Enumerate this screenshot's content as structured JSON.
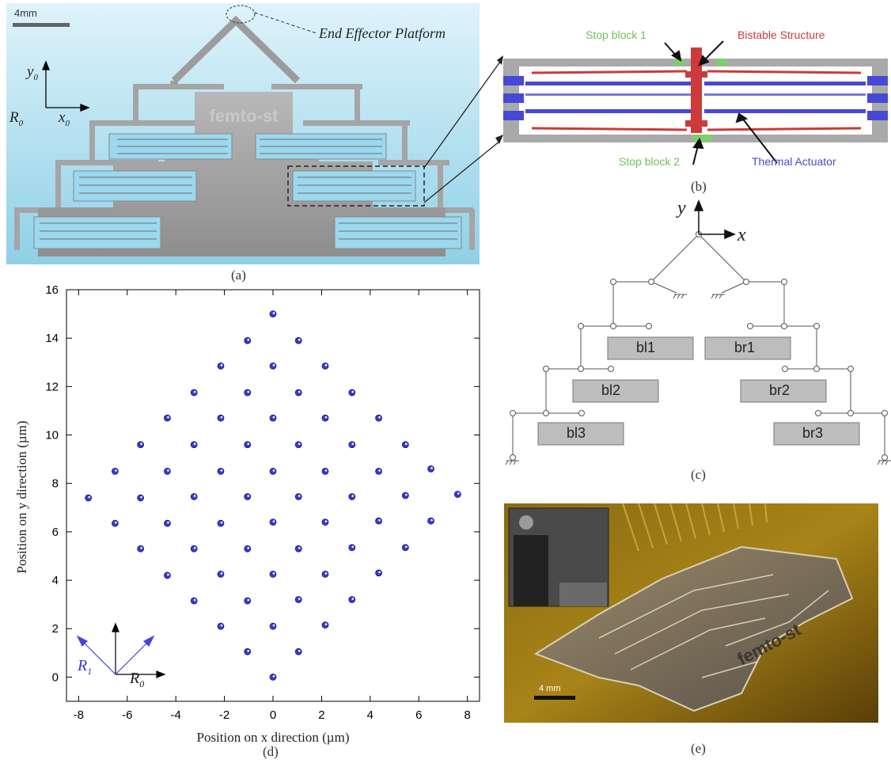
{
  "panel_a": {
    "caption": "(a)",
    "scale_label": "4mm",
    "end_effector_label": "End Effector Platform",
    "axis_y": "y",
    "axis_y_sub": "0",
    "axis_x": "x",
    "axis_x_sub": "0",
    "frame": "R",
    "frame_sub": "0",
    "logo_text": "femto-st"
  },
  "panel_b": {
    "caption": "(b)",
    "stop_block_1": "Stop block 1",
    "stop_block_2": "Stop block 2",
    "bistable": "Bistable Structure",
    "thermal": "Thermal Actuator",
    "colors": {
      "stop": "#7ecf6a",
      "bistable": "#d13b3b",
      "thermal": "#4040d0",
      "frame": "#9a9a9a"
    }
  },
  "panel_c": {
    "caption": "(c)",
    "axis_x": "x",
    "axis_y": "y",
    "blocks": [
      "bl1",
      "br1",
      "bl2",
      "br2",
      "bl3",
      "br3"
    ]
  },
  "panel_d": {
    "caption": "(d)",
    "frame_r1": "R",
    "frame_r1_sub": "1",
    "frame_r0": "R",
    "frame_r0_sub": "0"
  },
  "panel_e": {
    "caption": "(e)",
    "scale_label": "4 mm",
    "logo_text": "femto-st"
  },
  "chart_data": {
    "type": "scatter",
    "xlabel": "Position on x direction (µm)",
    "ylabel": "Position on y direction (µm)",
    "xlim": [
      -8.5,
      8.5
    ],
    "ylim": [
      -1,
      16
    ],
    "xticks": [
      -8,
      -6,
      -4,
      -2,
      0,
      2,
      4,
      6,
      8
    ],
    "yticks": [
      0,
      2,
      4,
      6,
      8,
      10,
      12,
      14,
      16
    ],
    "grid": false,
    "color": "#3a3ad0",
    "points": [
      [
        0,
        15.0
      ],
      [
        -1.05,
        13.9
      ],
      [
        1.05,
        13.9
      ],
      [
        -2.15,
        12.85
      ],
      [
        0,
        12.85
      ],
      [
        2.15,
        12.85
      ],
      [
        -3.25,
        11.75
      ],
      [
        -1.05,
        11.75
      ],
      [
        1.05,
        11.75
      ],
      [
        3.25,
        11.75
      ],
      [
        -4.35,
        10.7
      ],
      [
        -2.15,
        10.7
      ],
      [
        0,
        10.7
      ],
      [
        2.15,
        10.7
      ],
      [
        4.35,
        10.7
      ],
      [
        -5.45,
        9.6
      ],
      [
        -3.25,
        9.6
      ],
      [
        -1.05,
        9.6
      ],
      [
        1.05,
        9.6
      ],
      [
        3.25,
        9.6
      ],
      [
        5.45,
        9.6
      ],
      [
        -6.5,
        8.5
      ],
      [
        -4.35,
        8.5
      ],
      [
        -2.15,
        8.5
      ],
      [
        0,
        8.5
      ],
      [
        2.15,
        8.5
      ],
      [
        4.35,
        8.5
      ],
      [
        6.5,
        8.6
      ],
      [
        -7.6,
        7.4
      ],
      [
        -5.45,
        7.4
      ],
      [
        -3.25,
        7.45
      ],
      [
        -1.05,
        7.45
      ],
      [
        1.05,
        7.45
      ],
      [
        3.25,
        7.45
      ],
      [
        5.45,
        7.5
      ],
      [
        7.6,
        7.55
      ],
      [
        -6.5,
        6.35
      ],
      [
        -4.35,
        6.35
      ],
      [
        -2.15,
        6.35
      ],
      [
        0,
        6.4
      ],
      [
        2.15,
        6.4
      ],
      [
        4.35,
        6.45
      ],
      [
        6.5,
        6.45
      ],
      [
        -5.45,
        5.3
      ],
      [
        -3.25,
        5.3
      ],
      [
        -1.05,
        5.3
      ],
      [
        1.05,
        5.3
      ],
      [
        3.25,
        5.35
      ],
      [
        5.45,
        5.35
      ],
      [
        -4.35,
        4.2
      ],
      [
        -2.15,
        4.25
      ],
      [
        0,
        4.25
      ],
      [
        2.15,
        4.25
      ],
      [
        4.35,
        4.3
      ],
      [
        -3.25,
        3.15
      ],
      [
        -1.05,
        3.15
      ],
      [
        1.05,
        3.2
      ],
      [
        3.25,
        3.2
      ],
      [
        -2.15,
        2.1
      ],
      [
        0,
        2.1
      ],
      [
        2.15,
        2.15
      ],
      [
        -1.05,
        1.05
      ],
      [
        1.05,
        1.05
      ],
      [
        0,
        0
      ]
    ]
  }
}
